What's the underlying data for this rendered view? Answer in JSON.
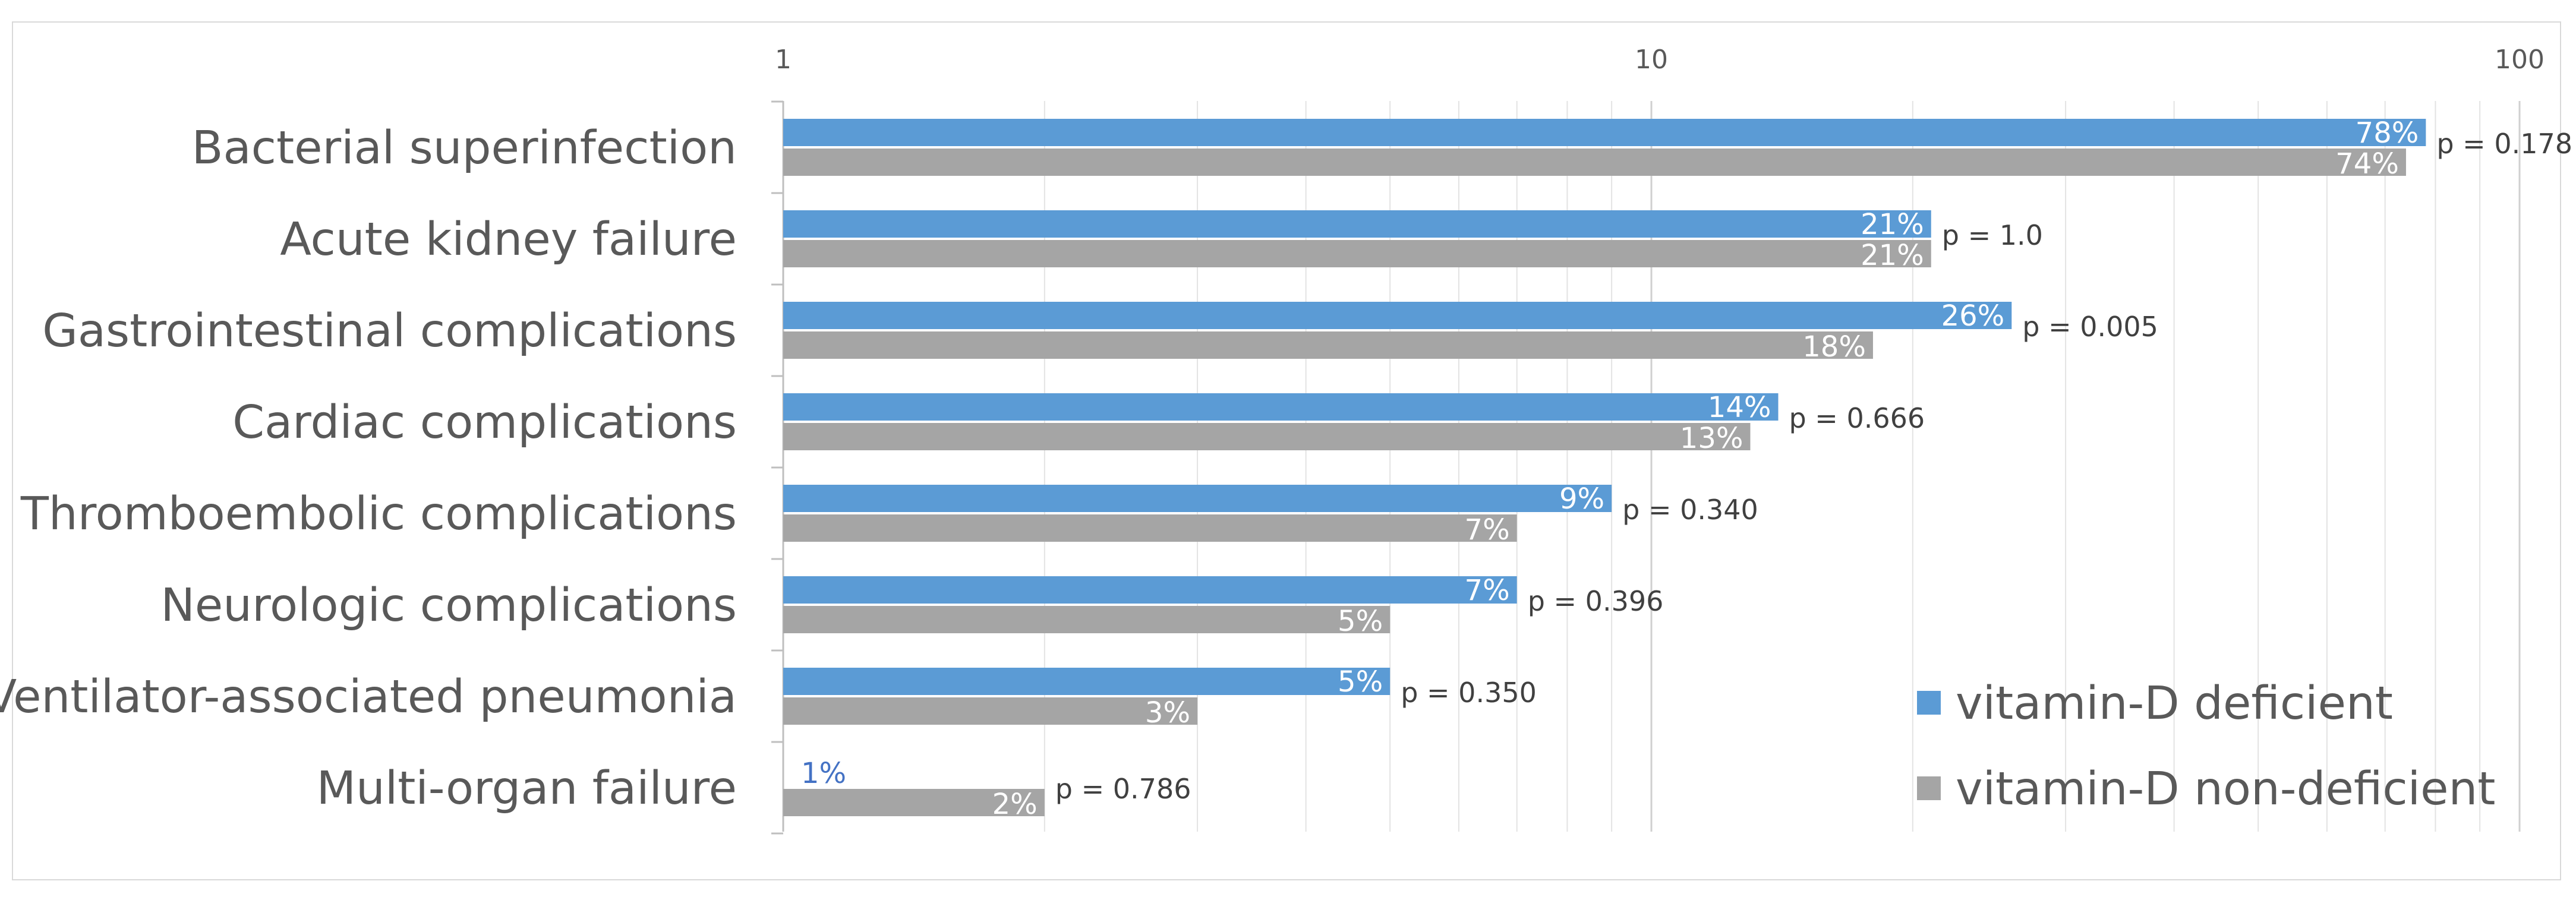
{
  "chart_data": {
    "type": "bar",
    "orientation": "horizontal",
    "x_scale": "log",
    "xlim": [
      1,
      100
    ],
    "x_ticks": [
      "1",
      "10",
      "100"
    ],
    "grid": true,
    "legend_position": "bottom-right",
    "categories": [
      "Bacterial superinfection",
      "Acute kidney failure",
      "Gastrointestinal complications",
      "Cardiac complications",
      "Thromboembolic complications",
      "Neurologic complications",
      "Ventilator-associated pneumonia",
      "Multi-organ failure"
    ],
    "series": [
      {
        "name": "vitamin-D deficient",
        "color": "#5b9bd5",
        "values": [
          78,
          21,
          26,
          14,
          9,
          7,
          5,
          1
        ],
        "labels": [
          "78%",
          "21%",
          "26%",
          "14%",
          "9%",
          "7%",
          "5%",
          "1%"
        ]
      },
      {
        "name": "vitamin-D non-deficient",
        "color": "#a5a5a5",
        "values": [
          74,
          21,
          18,
          13,
          7,
          5,
          3,
          2
        ],
        "labels": [
          "74%",
          "21%",
          "18%",
          "13%",
          "7%",
          "5%",
          "3%",
          "2%"
        ]
      }
    ],
    "p_values": [
      "p = 0.178",
      "p = 1.0",
      "p = 0.005",
      "p = 0.666",
      "p = 0.340",
      "p = 0.396",
      "p = 0.350",
      "p = 0.786"
    ]
  }
}
